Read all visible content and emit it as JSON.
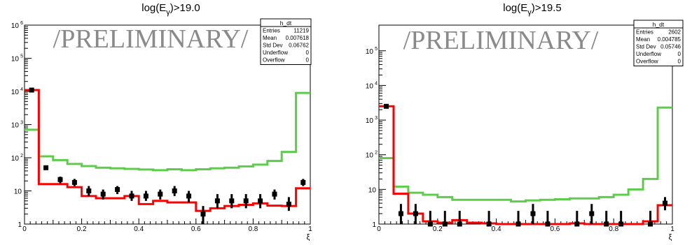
{
  "watermark": "/PRELIMINARY/",
  "chart_data": [
    {
      "type": "step-histogram",
      "title": "log(E_γ)>19.0",
      "title_main": "log(E",
      "title_sub": "γ",
      "title_suffix": ")>19.0",
      "xlabel": "ξ",
      "x_range": [
        0,
        1
      ],
      "y_scale": "log",
      "y_range": [
        1,
        1000000
      ],
      "x_ticks": [
        "0",
        "0.2",
        "0.4",
        "0.6",
        "0.8",
        "1"
      ],
      "y_ticks": [
        {
          "value": 1,
          "label": "1",
          "exp": ""
        },
        {
          "value": 10,
          "label": "10",
          "exp": ""
        },
        {
          "value": 100,
          "label": "10",
          "exp": "2"
        },
        {
          "value": 1000,
          "label": "10",
          "exp": "3"
        },
        {
          "value": 10000,
          "label": "10",
          "exp": "4"
        },
        {
          "value": 100000,
          "label": "10",
          "exp": "5"
        },
        {
          "value": 1000000,
          "label": "10",
          "exp": "6"
        }
      ],
      "bin_edges": [
        0,
        0.05,
        0.1,
        0.15,
        0.2,
        0.25,
        0.3,
        0.35,
        0.4,
        0.45,
        0.5,
        0.55,
        0.6,
        0.65,
        0.7,
        0.75,
        0.8,
        0.85,
        0.9,
        0.95,
        1.0
      ],
      "series": [
        {
          "color": "#5ccc4a",
          "values": [
            700,
            110,
            85,
            65,
            56,
            50,
            48,
            46,
            44,
            42,
            45,
            42,
            45,
            48,
            50,
            55,
            62,
            80,
            150,
            9000
          ]
        },
        {
          "color": "#ff0000",
          "values": [
            11000,
            16,
            16,
            13,
            7,
            6,
            6,
            7,
            4,
            5,
            4.5,
            4.5,
            2.5,
            3,
            3.5,
            3.8,
            4.2,
            3.6,
            3.5,
            12
          ]
        }
      ],
      "points": [
        {
          "x": 0.025,
          "y": 11000,
          "ylo": 10500,
          "yhi": 11500
        },
        {
          "x": 0.075,
          "y": 50,
          "ylo": 43,
          "yhi": 57
        },
        {
          "x": 0.125,
          "y": 22,
          "ylo": 17,
          "yhi": 27
        },
        {
          "x": 0.175,
          "y": 18,
          "ylo": 14,
          "yhi": 23
        },
        {
          "x": 0.225,
          "y": 10,
          "ylo": 7,
          "yhi": 14
        },
        {
          "x": 0.275,
          "y": 8,
          "ylo": 5.5,
          "yhi": 11
        },
        {
          "x": 0.325,
          "y": 11,
          "ylo": 8,
          "yhi": 14
        },
        {
          "x": 0.375,
          "y": 7,
          "ylo": 5,
          "yhi": 10
        },
        {
          "x": 0.425,
          "y": 7,
          "ylo": 5,
          "yhi": 10
        },
        {
          "x": 0.475,
          "y": 8,
          "ylo": 5.5,
          "yhi": 11
        },
        {
          "x": 0.525,
          "y": 10,
          "ylo": 7,
          "yhi": 14
        },
        {
          "x": 0.575,
          "y": 7,
          "ylo": 4.5,
          "yhi": 10
        },
        {
          "x": 0.625,
          "y": 2,
          "ylo": 1,
          "yhi": 3.5
        },
        {
          "x": 0.675,
          "y": 5,
          "ylo": 3,
          "yhi": 8
        },
        {
          "x": 0.725,
          "y": 5,
          "ylo": 3,
          "yhi": 8
        },
        {
          "x": 0.775,
          "y": 5,
          "ylo": 3,
          "yhi": 8
        },
        {
          "x": 0.825,
          "y": 5,
          "ylo": 3,
          "yhi": 8
        },
        {
          "x": 0.875,
          "y": 8,
          "ylo": 5.5,
          "yhi": 11
        },
        {
          "x": 0.925,
          "y": 4,
          "ylo": 2.5,
          "yhi": 6.5
        },
        {
          "x": 0.975,
          "y": 18,
          "ylo": 14,
          "yhi": 23
        }
      ],
      "stats": {
        "title": "h_dt",
        "rows": [
          {
            "label": "Entries",
            "value": "11219"
          },
          {
            "label": "Mean",
            "value": "0.007618"
          },
          {
            "label": "Std Dev",
            "value": "0.06762"
          },
          {
            "label": "Underflow",
            "value": "0"
          },
          {
            "label": "Overflow",
            "value": "0"
          }
        ]
      }
    },
    {
      "type": "step-histogram",
      "title": "log(E_γ)>19.5",
      "title_main": "log(E",
      "title_sub": "γ",
      "title_suffix": ")>19.5",
      "xlabel": "ξ",
      "x_range": [
        0,
        1
      ],
      "y_scale": "log",
      "y_range": [
        1,
        550000
      ],
      "x_ticks": [
        "0",
        "0.2",
        "0.4",
        "0.6",
        "0.8",
        "1"
      ],
      "y_ticks": [
        {
          "value": 1,
          "label": "1",
          "exp": ""
        },
        {
          "value": 10,
          "label": "10",
          "exp": ""
        },
        {
          "value": 100,
          "label": "10",
          "exp": "2"
        },
        {
          "value": 1000,
          "label": "10",
          "exp": "3"
        },
        {
          "value": 10000,
          "label": "10",
          "exp": "4"
        },
        {
          "value": 100000,
          "label": "10",
          "exp": "5"
        }
      ],
      "bin_edges": [
        0,
        0.05,
        0.1,
        0.15,
        0.2,
        0.25,
        0.3,
        0.35,
        0.4,
        0.45,
        0.5,
        0.55,
        0.6,
        0.65,
        0.7,
        0.75,
        0.8,
        0.85,
        0.9,
        0.95,
        1.0
      ],
      "series": [
        {
          "color": "#5ccc4a",
          "values": [
            80,
            12,
            8,
            7,
            6,
            5,
            5,
            5,
            5,
            4.5,
            4.8,
            5,
            5.2,
            5.5,
            5.5,
            6,
            7,
            10,
            20,
            2300
          ]
        },
        {
          "color": "#ff0000",
          "values": [
            2500,
            7.5,
            2,
            1.2,
            1.1,
            1.3,
            1.1,
            1.05,
            1.0,
            1.0,
            1.0,
            1.0,
            1.0,
            1.05,
            1.0,
            1.0,
            1.0,
            1.0,
            1.2,
            3.5
          ]
        }
      ],
      "points": [
        {
          "x": 0.025,
          "y": 2500,
          "ylo": 2350,
          "yhi": 2650
        },
        {
          "x": 0.075,
          "y": 2,
          "ylo": 1,
          "yhi": 3.8
        },
        {
          "x": 0.125,
          "y": 2,
          "ylo": 1,
          "yhi": 3.8
        },
        {
          "x": 0.175,
          "y": 1,
          "ylo": 1,
          "yhi": 2.4
        },
        {
          "x": 0.225,
          "y": 1,
          "ylo": 1,
          "yhi": 2.4
        },
        {
          "x": 0.275,
          "y": 1,
          "ylo": 1,
          "yhi": 2.4
        },
        {
          "x": 0.375,
          "y": 1,
          "ylo": 1,
          "yhi": 2.4
        },
        {
          "x": 0.475,
          "y": 1,
          "ylo": 1,
          "yhi": 2.4
        },
        {
          "x": 0.525,
          "y": 2,
          "ylo": 1,
          "yhi": 3.8
        },
        {
          "x": 0.575,
          "y": 1,
          "ylo": 1,
          "yhi": 2.4
        },
        {
          "x": 0.675,
          "y": 1,
          "ylo": 1,
          "yhi": 2.4
        },
        {
          "x": 0.725,
          "y": 2,
          "ylo": 1,
          "yhi": 3.8
        },
        {
          "x": 0.775,
          "y": 1,
          "ylo": 1,
          "yhi": 2.4
        },
        {
          "x": 0.825,
          "y": 1,
          "ylo": 1,
          "yhi": 2.4
        },
        {
          "x": 0.925,
          "y": 1,
          "ylo": 1,
          "yhi": 2.4
        },
        {
          "x": 0.975,
          "y": 4,
          "ylo": 2.5,
          "yhi": 6
        }
      ],
      "stats": {
        "title": "h_dt",
        "rows": [
          {
            "label": "Entries",
            "value": "2602"
          },
          {
            "label": "Mean",
            "value": "0.004785"
          },
          {
            "label": "Std Dev",
            "value": "0.05746"
          },
          {
            "label": "Underflow",
            "value": "0"
          },
          {
            "label": "Overflow",
            "value": "0"
          }
        ]
      }
    }
  ]
}
